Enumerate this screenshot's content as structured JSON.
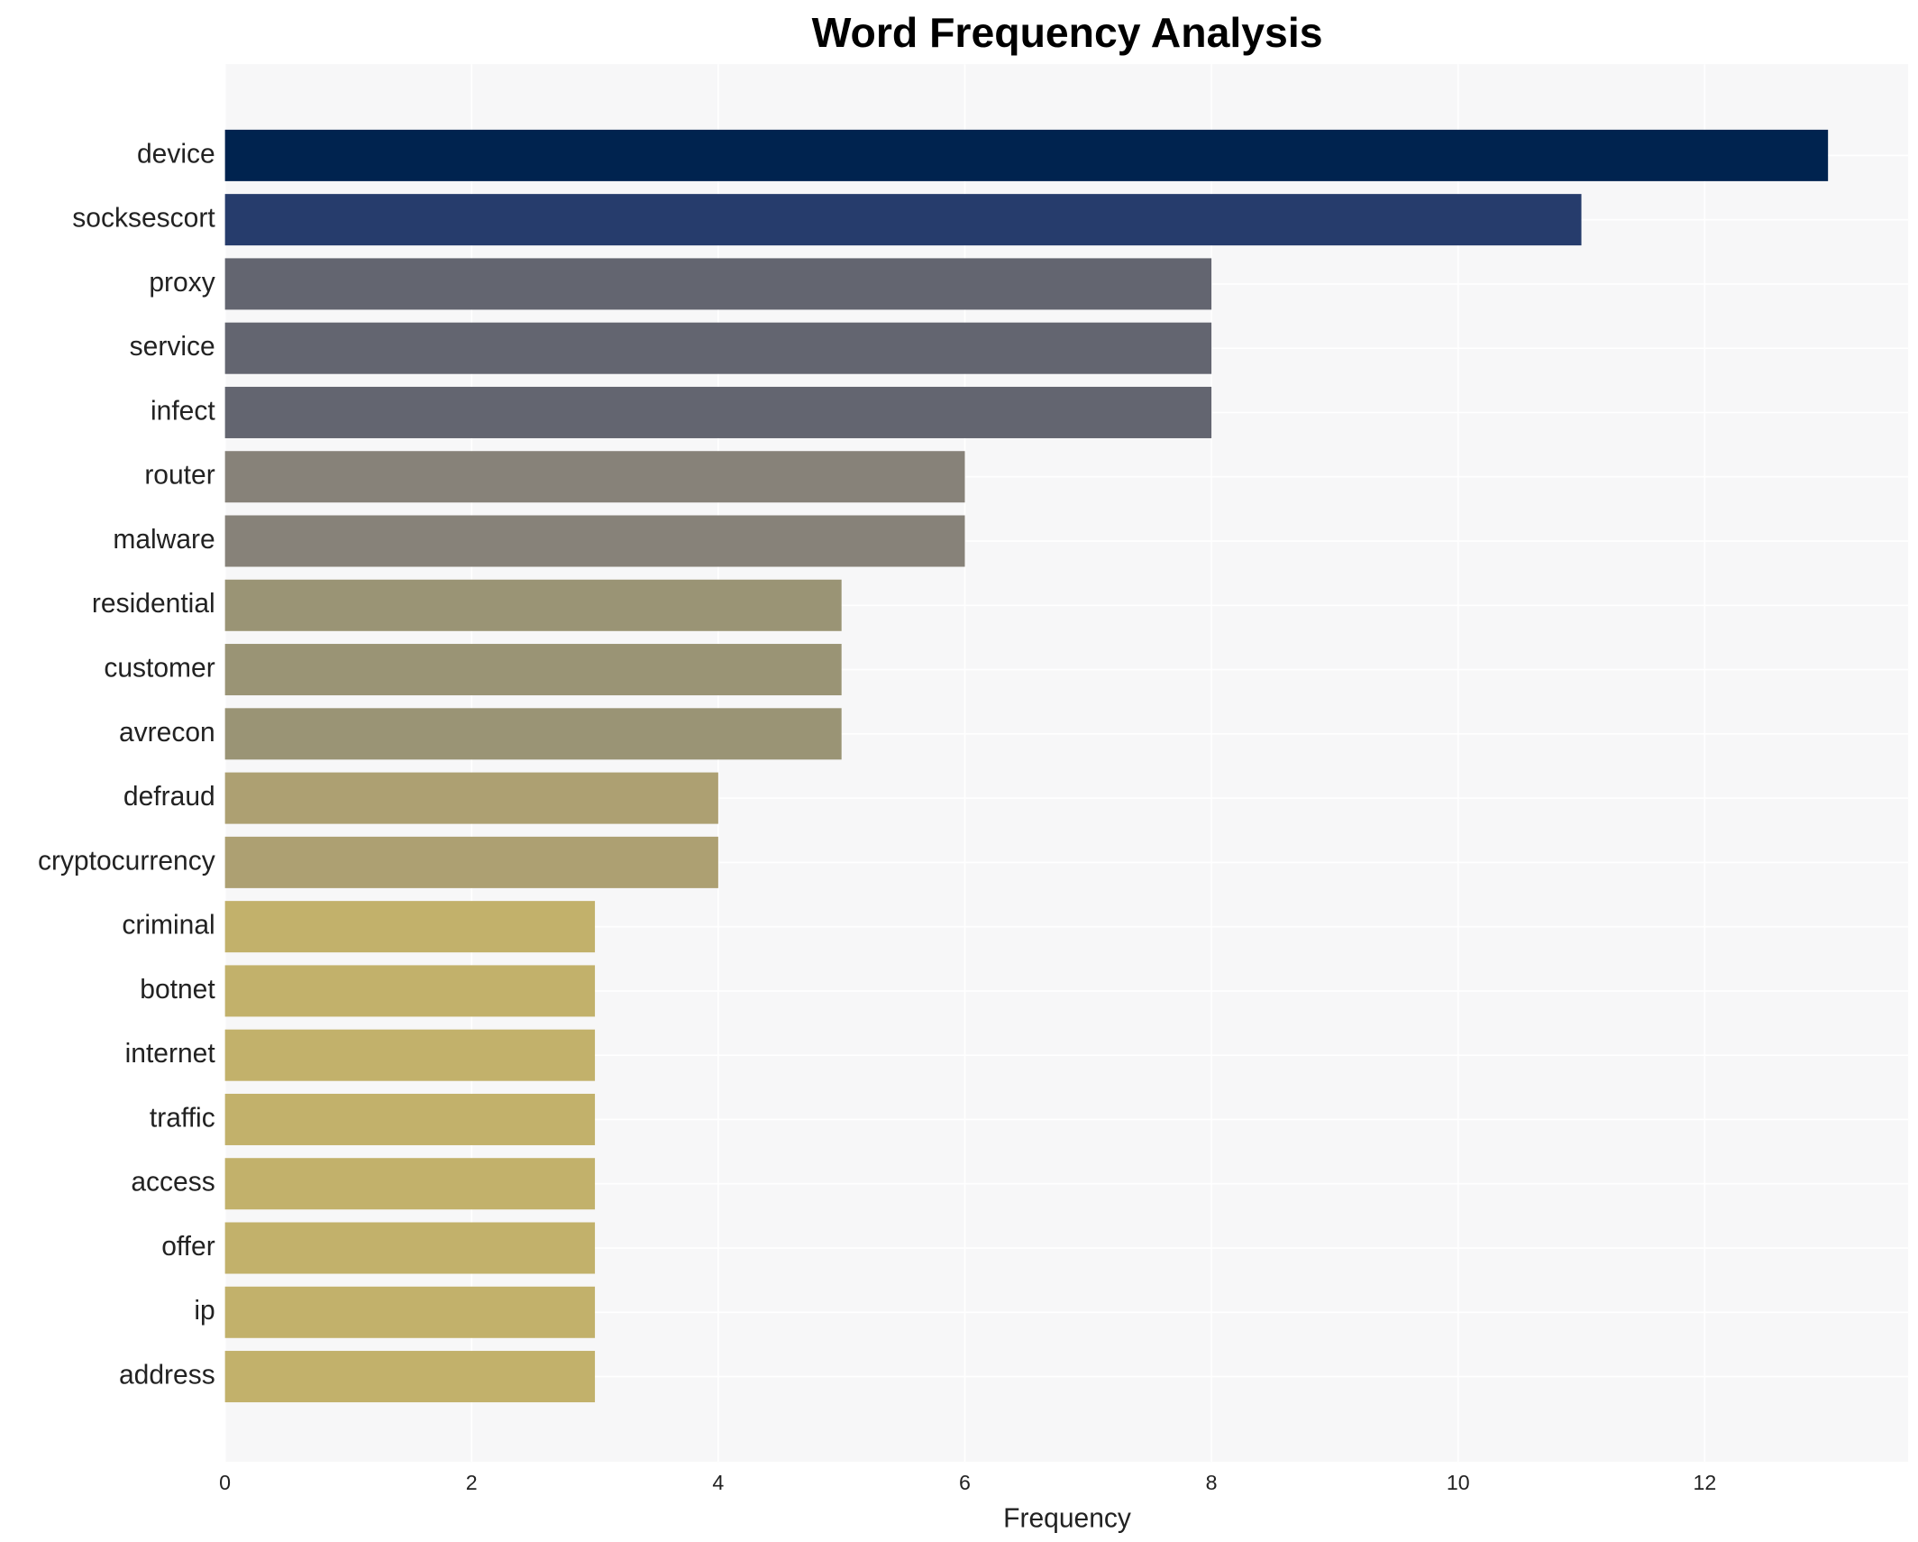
{
  "chart_data": {
    "type": "bar",
    "orientation": "horizontal",
    "title": "Word Frequency Analysis",
    "x_label": "Frequency",
    "categories": [
      "device",
      "socksescort",
      "proxy",
      "service",
      "infect",
      "router",
      "malware",
      "residential",
      "customer",
      "avrecon",
      "defraud",
      "cryptocurrency",
      "criminal",
      "botnet",
      "internet",
      "traffic",
      "access",
      "offer",
      "ip",
      "address"
    ],
    "values": [
      13,
      11,
      8,
      8,
      8,
      6,
      6,
      5,
      5,
      5,
      4,
      4,
      3,
      3,
      3,
      3,
      3,
      3,
      3,
      3
    ],
    "colors": [
      "#00234f",
      "#263c6c",
      "#636570",
      "#636570",
      "#636570",
      "#878279",
      "#878279",
      "#9a9475",
      "#9a9475",
      "#9a9475",
      "#ada072",
      "#ada072",
      "#c2b16b",
      "#c2b16b",
      "#c2b16b",
      "#c2b16b",
      "#c2b16b",
      "#c2b16b",
      "#c2b16b",
      "#c2b16b"
    ],
    "xlim": [
      0,
      13.65
    ],
    "xticks": [
      0,
      2,
      4,
      6,
      8,
      10,
      12
    ],
    "grid": true
  }
}
